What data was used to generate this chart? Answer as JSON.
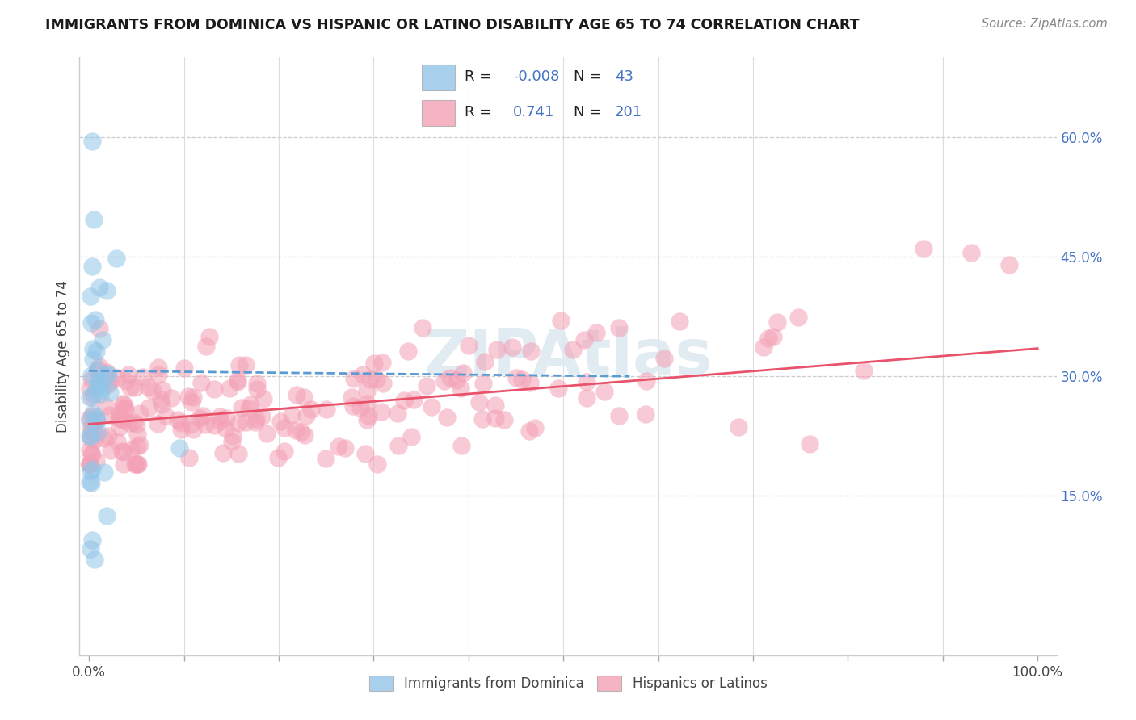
{
  "title": "IMMIGRANTS FROM DOMINICA VS HISPANIC OR LATINO DISABILITY AGE 65 TO 74 CORRELATION CHART",
  "source": "Source: ZipAtlas.com",
  "ylabel": "Disability Age 65 to 74",
  "ytick_labels": [
    "60.0%",
    "45.0%",
    "30.0%",
    "15.0%"
  ],
  "ytick_positions": [
    0.6,
    0.45,
    0.3,
    0.15
  ],
  "xlim": [
    -0.01,
    1.02
  ],
  "ylim": [
    -0.05,
    0.7
  ],
  "legend_label1": "Immigrants from Dominica",
  "legend_label2": "Hispanics or Latinos",
  "blue_color": "#92c5e8",
  "pink_color": "#f4a0b5",
  "blue_line_color": "#5b9bd5",
  "pink_line_color": "#e8526a",
  "legend_text_color": "#4472c4",
  "blue_trend_x": [
    0.0,
    0.57
  ],
  "blue_trend_y": [
    0.307,
    0.3
  ],
  "pink_trend_x": [
    0.0,
    1.0
  ],
  "pink_trend_y": [
    0.24,
    0.335
  ],
  "watermark": "ZIPAtlas"
}
